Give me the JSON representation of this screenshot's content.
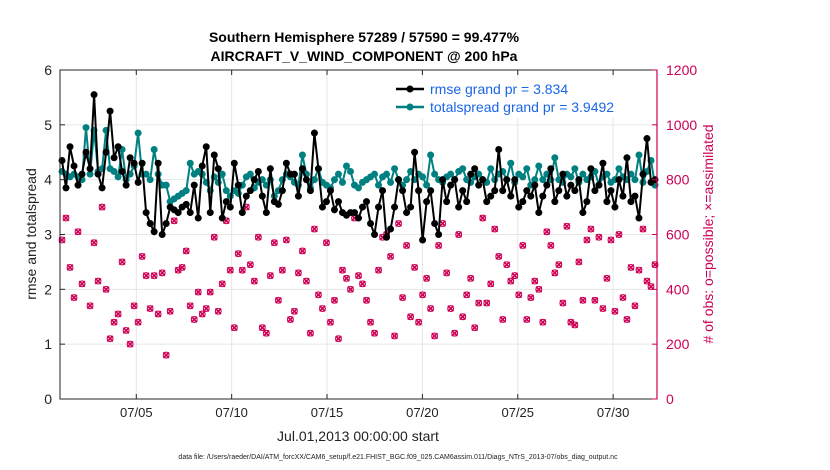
{
  "title_line1": "Southern Hemisphere 57289 / 57590 = 99.477%",
  "title_line2": "AIRCRAFT_V_WIND_COMPONENT @ 200 hPa",
  "footer": "data file: /Users/raeder/DAI/ATM_forcXX/CAM6_setup/f.e21.FHIST_BGC.f09_025.CAM6assim.011/Diags_NTrS_2013-07/obs_diag_output.nc",
  "colors": {
    "rmse": "#000000",
    "spread": "#008080",
    "obs": "#cc0055",
    "grid": "#e6e6e6"
  },
  "chart_data": {
    "type": "line",
    "xlabel": "Jul.01,2013 00:00:00 start",
    "ylabel_left": "rmse and totalspread",
    "ylabel_right": "# of obs: o=possible; ×=assimilated",
    "xlim": [
      1,
      32.3
    ],
    "ylim_left": [
      0,
      6
    ],
    "ylim_right": [
      0,
      1200
    ],
    "xticks": [
      5,
      10,
      15,
      20,
      25,
      30
    ],
    "xtick_labels": [
      "07/05",
      "07/10",
      "07/15",
      "07/20",
      "07/25",
      "07/30"
    ],
    "yticks_left": [
      0,
      1,
      2,
      3,
      4,
      5,
      6
    ],
    "yticks_right": [
      0,
      200,
      400,
      600,
      800,
      1000,
      1200
    ],
    "legend": [
      "rmse grand pr = 3.834",
      "totalspread grand pr = 3.9492"
    ],
    "series": [
      {
        "name": "rmse",
        "values": [
          4.35,
          3.85,
          4.6,
          4.25,
          3.9,
          4.1,
          4.5,
          4.2,
          5.55,
          4.1,
          3.85,
          4.5,
          5.25,
          4.4,
          4.6,
          4.15,
          3.9,
          4.4,
          4.3,
          3.95,
          4.3,
          3.4,
          3.2,
          3.05,
          4.3,
          3.0,
          3.2,
          3.5,
          3.45,
          3.4,
          3.5,
          3.55,
          3.4,
          3.9,
          3.3,
          4.25,
          4.6,
          3.4,
          4.45,
          4.2,
          3.3,
          3.6,
          3.5,
          4.3,
          3.9,
          3.4,
          3.7,
          3.8,
          4.0,
          4.15,
          3.7,
          3.4,
          4.2,
          3.6,
          3.55,
          3.8,
          4.3,
          4.1,
          4.1,
          3.7,
          4.2,
          4.0,
          3.8,
          4.85,
          4.2,
          3.5,
          3.6,
          3.8,
          3.45,
          3.6,
          3.4,
          3.35,
          3.4,
          3.4,
          3.3,
          3.5,
          3.6,
          3.2,
          3.0,
          3.5,
          3.8,
          2.95,
          3.1,
          3.5,
          4.0,
          3.8,
          3.4,
          3.5,
          4.5,
          3.8,
          2.9,
          3.6,
          3.8,
          3.2,
          3.0,
          4.0,
          3.6,
          3.9,
          4.0,
          3.5,
          3.8,
          3.6,
          4.1,
          4.2,
          3.9,
          4.0,
          3.6,
          3.7,
          3.8,
          4.55,
          3.8,
          4.0,
          3.7,
          4.0,
          3.5,
          3.6,
          3.8,
          3.7,
          3.9,
          3.4,
          3.7,
          3.9,
          4.2,
          3.6,
          3.8,
          4.1,
          3.7,
          3.9,
          3.8,
          4.0,
          3.4,
          3.6,
          4.2,
          3.8,
          3.9,
          4.3,
          3.6,
          3.8,
          3.5,
          4.0,
          3.7,
          4.4,
          3.6,
          3.7,
          3.3,
          4.1,
          4.75,
          3.95,
          4.0
        ]
      },
      {
        "name": "totalspread",
        "values": [
          4.15,
          4.1,
          4.05,
          4.1,
          4.05,
          4.0,
          4.95,
          4.1,
          4.9,
          4.15,
          4.2,
          4.9,
          4.2,
          4.15,
          4.05,
          4.55,
          4.0,
          4.1,
          4.25,
          4.85,
          4.1,
          4.1,
          4.0,
          4.55,
          4.1,
          3.9,
          3.9,
          3.6,
          3.65,
          3.7,
          3.75,
          3.8,
          4.3,
          4.1,
          4.15,
          4.1,
          3.95,
          3.8,
          4.05,
          3.95,
          4.1,
          3.8,
          3.7,
          3.8,
          3.75,
          3.9,
          4.05,
          4.1,
          3.85,
          3.95,
          4.0,
          3.9,
          4.0,
          3.7,
          3.8,
          4.0,
          4.1,
          4.05,
          3.95,
          3.9,
          4.45,
          4.1,
          3.85,
          4.0,
          4.2,
          3.95,
          3.9,
          3.85,
          4.0,
          4.1,
          3.95,
          4.25,
          4.15,
          3.9,
          3.85,
          3.95,
          4.0,
          4.05,
          4.1,
          3.9,
          4.05,
          4.1,
          3.95,
          4.2,
          4.0,
          3.9,
          4.0,
          4.15,
          4.0,
          4.1,
          4.05,
          3.9,
          4.45,
          4.1,
          4.0,
          3.95,
          4.05,
          4.1,
          4.0,
          4.15,
          4.2,
          4.0,
          3.95,
          4.05,
          4.1,
          4.0,
          3.95,
          4.2,
          4.0,
          4.1,
          4.15,
          4.0,
          4.3,
          3.95,
          4.1,
          4.05,
          4.2,
          3.9,
          4.0,
          4.25,
          4.0,
          4.1,
          4.0,
          4.4,
          4.0,
          3.95,
          4.1,
          4.05,
          4.2,
          3.95,
          4.1,
          4.0,
          4.05,
          4.15,
          3.9,
          4.05,
          4.1,
          3.95,
          4.0,
          4.2,
          4.05,
          4.0,
          4.1,
          4.0,
          4.45,
          3.95,
          4.15,
          4.35,
          3.9
        ]
      },
      {
        "name": "obs",
        "values": [
          580,
          660,
          480,
          370,
          610,
          420,
          890,
          340,
          570,
          430,
          700,
          400,
          220,
          280,
          310,
          500,
          250,
          200,
          340,
          280,
          520,
          450,
          330,
          450,
          310,
          460,
          160,
          320,
          650,
          470,
          480,
          540,
          340,
          290,
          390,
          310,
          330,
          390,
          590,
          320,
          420,
          650,
          470,
          260,
          530,
          470,
          700,
          490,
          430,
          590,
          260,
          240,
          450,
          570,
          360,
          470,
          580,
          290,
          320,
          460,
          540,
          430,
          240,
          620,
          380,
          330,
          570,
          280,
          360,
          220,
          470,
          440,
          400,
          660,
          450,
          420,
          360,
          280,
          240,
          470,
          590,
          600,
          520,
          230,
          640,
          370,
          560,
          300,
          480,
          280,
          380,
          440,
          330,
          230,
          560,
          640,
          460,
          330,
          240,
          600,
          300,
          380,
          440,
          260,
          350,
          660,
          350,
          420,
          620,
          520,
          290,
          490,
          430,
          450,
          380,
          560,
          290,
          370,
          430,
          400,
          280,
          610,
          560,
          460,
          490,
          350,
          630,
          280,
          270,
          500,
          360,
          580,
          620,
          360,
          590,
          330,
          440,
          580,
          320,
          600,
          370,
          290,
          480,
          340,
          470,
          620,
          430,
          410,
          490
        ]
      }
    ]
  }
}
